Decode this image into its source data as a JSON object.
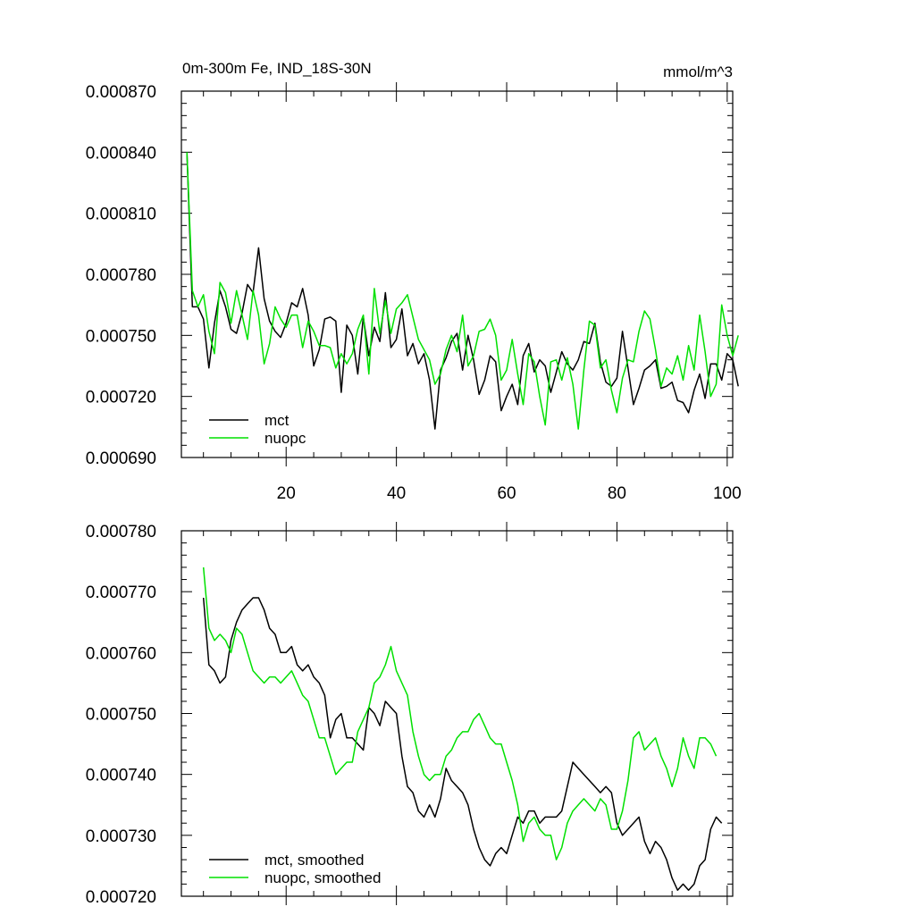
{
  "chart_data": [
    {
      "type": "line",
      "title": "0m-300m Fe, IND_18S-30N",
      "units": "mmol/m^3",
      "xlim": [
        1,
        101
      ],
      "ylim": [
        0.00069,
        0.00087
      ],
      "x_ticks": [
        "20",
        "40",
        "60",
        "80",
        "100"
      ],
      "y_ticks": [
        "0.000690",
        "0.000720",
        "0.000750",
        "0.000780",
        "0.000810",
        "0.000840",
        "0.000870"
      ],
      "x_tick_values": [
        20,
        40,
        60,
        80,
        100
      ],
      "y_tick_values": [
        0.00069,
        0.00072,
        0.00075,
        0.00078,
        0.00081,
        0.00084,
        0.00087
      ],
      "legend_position": "bottom-left",
      "series": [
        {
          "name": "mct",
          "color": "#000000",
          "x_start": 2,
          "values": [
            0.00084,
            0.000764,
            0.000764,
            0.000758,
            0.000734,
            0.000756,
            0.000772,
            0.000764,
            0.000753,
            0.000751,
            0.000761,
            0.000775,
            0.000771,
            0.000793,
            0.000768,
            0.000757,
            0.000752,
            0.000749,
            0.000756,
            0.000766,
            0.000764,
            0.000773,
            0.00076,
            0.000735,
            0.000743,
            0.000758,
            0.000759,
            0.000757,
            0.000722,
            0.000755,
            0.00075,
            0.000731,
            0.000759,
            0.00074,
            0.000754,
            0.000747,
            0.000771,
            0.000744,
            0.000748,
            0.000763,
            0.00074,
            0.000746,
            0.000736,
            0.000741,
            0.000728,
            0.000704,
            0.000733,
            0.000739,
            0.000747,
            0.000751,
            0.000733,
            0.00075,
            0.000738,
            0.000721,
            0.000728,
            0.00074,
            0.000737,
            0.000713,
            0.00072,
            0.000726,
            0.000716,
            0.00074,
            0.000746,
            0.000732,
            0.000738,
            0.000735,
            0.000722,
            0.000732,
            0.000742,
            0.000736,
            0.000733,
            0.000738,
            0.000747,
            0.000746,
            0.000756,
            0.000737,
            0.000727,
            0.000725,
            0.000729,
            0.000752,
            0.000734,
            0.000716,
            0.000724,
            0.000733,
            0.000735,
            0.000738,
            0.000724,
            0.000725,
            0.000727,
            0.000718,
            0.000717,
            0.000712,
            0.000723,
            0.000731,
            0.000719,
            0.000736,
            0.000736,
            0.000728,
            0.000741,
            0.000738,
            0.000725
          ]
        },
        {
          "name": "nuopc",
          "color": "#00e000",
          "x_start": 2,
          "values": [
            0.00084,
            0.000772,
            0.000764,
            0.00077,
            0.000752,
            0.000741,
            0.000776,
            0.000771,
            0.000756,
            0.000772,
            0.00076,
            0.000748,
            0.000772,
            0.00076,
            0.000736,
            0.000746,
            0.000764,
            0.000758,
            0.000754,
            0.00076,
            0.00076,
            0.000744,
            0.000757,
            0.000752,
            0.000745,
            0.000745,
            0.000744,
            0.000734,
            0.000741,
            0.000736,
            0.000741,
            0.000753,
            0.00076,
            0.000731,
            0.000773,
            0.000751,
            0.000767,
            0.000751,
            0.000763,
            0.000766,
            0.00077,
            0.000759,
            0.000748,
            0.000743,
            0.000738,
            0.000726,
            0.000731,
            0.000743,
            0.00075,
            0.000742,
            0.00076,
            0.000735,
            0.00074,
            0.000752,
            0.000753,
            0.000758,
            0.00075,
            0.000728,
            0.000733,
            0.000748,
            0.000731,
            0.000716,
            0.000741,
            0.000737,
            0.00072,
            0.000706,
            0.000737,
            0.000738,
            0.000728,
            0.000739,
            0.000726,
            0.000704,
            0.000733,
            0.000757,
            0.000755,
            0.000734,
            0.000738,
            0.000723,
            0.000712,
            0.000729,
            0.000738,
            0.000737,
            0.000752,
            0.000762,
            0.000758,
            0.000743,
            0.000725,
            0.000734,
            0.000731,
            0.00074,
            0.000728,
            0.000745,
            0.000733,
            0.00076,
            0.000742,
            0.00072,
            0.000726,
            0.000765,
            0.00075,
            0.00074,
            0.00075
          ]
        }
      ],
      "legend": [
        "mct",
        "nuopc"
      ]
    },
    {
      "type": "line",
      "title": "",
      "xlim": [
        1,
        101
      ],
      "ylim": [
        0.00072,
        0.00078
      ],
      "x_tick_values": [
        20,
        40,
        60,
        80,
        100
      ],
      "y_ticks": [
        "0.000720",
        "0.000730",
        "0.000740",
        "0.000750",
        "0.000760",
        "0.000770",
        "0.000780"
      ],
      "y_tick_values": [
        0.00072,
        0.00073,
        0.00074,
        0.00075,
        0.00076,
        0.00077,
        0.00078
      ],
      "legend_position": "bottom-left",
      "series": [
        {
          "name": "mct, smoothed",
          "color": "#000000",
          "x_start": 5,
          "values": [
            0.000769,
            0.000758,
            0.000757,
            0.000755,
            0.000756,
            0.000762,
            0.000765,
            0.000767,
            0.000768,
            0.000769,
            0.000769,
            0.000767,
            0.000764,
            0.000763,
            0.00076,
            0.00076,
            0.000761,
            0.000758,
            0.000757,
            0.000758,
            0.000756,
            0.000755,
            0.000753,
            0.000746,
            0.000749,
            0.00075,
            0.000746,
            0.000746,
            0.000745,
            0.000744,
            0.000751,
            0.00075,
            0.000748,
            0.000752,
            0.000751,
            0.00075,
            0.000743,
            0.000738,
            0.000737,
            0.000734,
            0.000733,
            0.000735,
            0.000733,
            0.000736,
            0.000741,
            0.000739,
            0.000738,
            0.000737,
            0.000735,
            0.000731,
            0.000728,
            0.000726,
            0.000725,
            0.000727,
            0.000728,
            0.000727,
            0.00073,
            0.000733,
            0.000732,
            0.000734,
            0.000734,
            0.000732,
            0.000733,
            0.000733,
            0.000733,
            0.000734,
            0.000738,
            0.000742,
            0.000741,
            0.00074,
            0.000739,
            0.000738,
            0.000737,
            0.000738,
            0.000737,
            0.000732,
            0.00073,
            0.000731,
            0.000732,
            0.000733,
            0.000729,
            0.000727,
            0.000729,
            0.000728,
            0.000726,
            0.000723,
            0.000721,
            0.000722,
            0.000721,
            0.000722,
            0.000725,
            0.000726,
            0.000731,
            0.000733,
            0.000732
          ]
        },
        {
          "name": "nuopc, smoothed",
          "color": "#00e000",
          "x_start": 5,
          "values": [
            0.000774,
            0.000764,
            0.000762,
            0.000763,
            0.000762,
            0.00076,
            0.000764,
            0.000763,
            0.00076,
            0.000757,
            0.000756,
            0.000755,
            0.000756,
            0.000756,
            0.000755,
            0.000756,
            0.000757,
            0.000755,
            0.000753,
            0.000752,
            0.000749,
            0.000746,
            0.000746,
            0.000743,
            0.00074,
            0.000741,
            0.000742,
            0.000742,
            0.000747,
            0.000749,
            0.000751,
            0.000755,
            0.000756,
            0.000758,
            0.000761,
            0.000757,
            0.000755,
            0.000753,
            0.000747,
            0.000743,
            0.00074,
            0.000739,
            0.00074,
            0.00074,
            0.000743,
            0.000744,
            0.000746,
            0.000747,
            0.000747,
            0.000749,
            0.00075,
            0.000748,
            0.000746,
            0.000745,
            0.000745,
            0.000742,
            0.000739,
            0.000735,
            0.000729,
            0.000732,
            0.000733,
            0.000731,
            0.00073,
            0.00073,
            0.000726,
            0.000728,
            0.000732,
            0.000734,
            0.000735,
            0.000736,
            0.000735,
            0.000734,
            0.000736,
            0.000735,
            0.000731,
            0.000731,
            0.000734,
            0.000739,
            0.000746,
            0.000747,
            0.000744,
            0.000745,
            0.000746,
            0.000743,
            0.000741,
            0.000738,
            0.000741,
            0.000746,
            0.000743,
            0.000741,
            0.000746,
            0.000746,
            0.000745,
            0.000743
          ]
        }
      ],
      "legend": [
        "mct, smoothed",
        "nuopc, smoothed"
      ]
    }
  ]
}
